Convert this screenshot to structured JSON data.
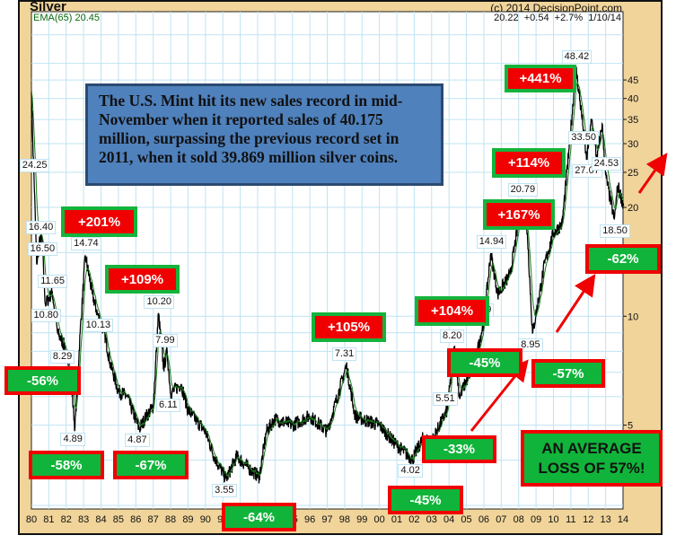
{
  "header": {
    "title": "Silver",
    "credit": "(c) 2014 DecisionPoint.com",
    "ema_label": "EMA(65) 20.45",
    "last_quote": "20.22  +0.54  +2.7%  1/10/14"
  },
  "note": "The U.S. Mint hit its new sales record in mid-November when it reported sales of 40.175 million, surpassing the previous record set in 2011, when it sold 39.869 million silver coins.",
  "summary_box": {
    "line1": "AN AVERAGE",
    "line2": "LOSS OF 57%!"
  },
  "colors": {
    "gain_box": "#f00000",
    "loss_box": "#10b43a",
    "price_line": "#000000",
    "ema_line": "#1a7a1a",
    "grid": "#bfe3f2",
    "frame": "#f0d49a",
    "note_box": "#4f81bd",
    "arrow": "#f00000"
  },
  "annotations": [
    {
      "text": "+441%",
      "kind": "gain"
    },
    {
      "text": "+114%",
      "kind": "gain"
    },
    {
      "text": "+167%",
      "kind": "gain"
    },
    {
      "text": "-62%",
      "kind": "loss"
    },
    {
      "text": "-57%",
      "kind": "loss"
    },
    {
      "text": "+104%",
      "kind": "gain"
    },
    {
      "text": "-45%",
      "kind": "loss"
    },
    {
      "text": "-33%",
      "kind": "loss"
    },
    {
      "text": "-45%",
      "kind": "loss"
    },
    {
      "text": "-64%",
      "kind": "loss"
    },
    {
      "text": "+105%",
      "kind": "gain"
    },
    {
      "text": "+201%",
      "kind": "gain"
    },
    {
      "text": "+109%",
      "kind": "gain"
    },
    {
      "text": "-56%",
      "kind": "loss"
    },
    {
      "text": "-58%",
      "kind": "loss"
    },
    {
      "text": "-67%",
      "kind": "loss"
    }
  ],
  "chart_data": {
    "type": "line",
    "title": "Silver",
    "y_scale": "log",
    "ylim": [
      2.9,
      70
    ],
    "xlim": [
      1980,
      2014.1
    ],
    "grid": true,
    "y_ticks": [
      5,
      10,
      20,
      25,
      30,
      35,
      40,
      45
    ],
    "x_ticks": [
      "80",
      "81",
      "82",
      "83",
      "84",
      "85",
      "86",
      "87",
      "88",
      "89",
      "90",
      "91",
      "92",
      "93",
      "94",
      "95",
      "96",
      "97",
      "98",
      "99",
      "00",
      "01",
      "02",
      "03",
      "04",
      "05",
      "06",
      "07",
      "08",
      "09",
      "10",
      "11",
      "12",
      "13",
      "14"
    ],
    "series": [
      {
        "name": "Silver",
        "points": [
          [
            1980.0,
            42
          ],
          [
            1980.08,
            30
          ],
          [
            1980.15,
            24.25
          ],
          [
            1980.3,
            14
          ],
          [
            1980.5,
            16.4
          ],
          [
            1980.6,
            16.5
          ],
          [
            1980.8,
            10.8
          ],
          [
            1981.2,
            11.65
          ],
          [
            1981.5,
            9
          ],
          [
            1981.9,
            8.29
          ],
          [
            1982.3,
            6.5
          ],
          [
            1982.5,
            4.89
          ],
          [
            1982.8,
            9
          ],
          [
            1983.1,
            14.74
          ],
          [
            1983.5,
            11.5
          ],
          [
            1983.8,
            10.13
          ],
          [
            1984.2,
            9
          ],
          [
            1984.5,
            7.5
          ],
          [
            1985,
            6.2
          ],
          [
            1985.5,
            6
          ],
          [
            1986.2,
            4.87
          ],
          [
            1986.6,
            5.3
          ],
          [
            1987.0,
            5.6
          ],
          [
            1987.3,
            10.2
          ],
          [
            1987.6,
            7.2
          ],
          [
            1987.8,
            7.99
          ],
          [
            1988,
            6.11
          ],
          [
            1988.6,
            6.5
          ],
          [
            1989,
            5.5
          ],
          [
            1990,
            4.8
          ],
          [
            1990.5,
            4.1
          ],
          [
            1991.2,
            3.55
          ],
          [
            1991.8,
            4.1
          ],
          [
            1992.5,
            3.8
          ],
          [
            1993.1,
            3.6
          ],
          [
            1993.5,
            4.8
          ],
          [
            1994,
            5.2
          ],
          [
            1995,
            5
          ],
          [
            1996,
            5.3
          ],
          [
            1997,
            4.8
          ],
          [
            1998.1,
            7.31
          ],
          [
            1998.6,
            5.3
          ],
          [
            1999,
            5.2
          ],
          [
            2000,
            5
          ],
          [
            2001,
            4.4
          ],
          [
            2001.9,
            4.02
          ],
          [
            2002.5,
            4.6
          ],
          [
            2003,
            4.5
          ],
          [
            2003.9,
            5.51
          ],
          [
            2004.3,
            8.2
          ],
          [
            2004.6,
            6
          ],
          [
            2005.5,
            7.5
          ],
          [
            2006.0,
            9.69
          ],
          [
            2006.4,
            14.94
          ],
          [
            2006.8,
            11.5
          ],
          [
            2007.5,
            13
          ],
          [
            2008.2,
            20.79
          ],
          [
            2008.5,
            17
          ],
          [
            2008.8,
            8.95
          ],
          [
            2009.5,
            14
          ],
          [
            2010.0,
            17
          ],
          [
            2010.5,
            18
          ],
          [
            2010.9,
            29
          ],
          [
            2011.3,
            48.42
          ],
          [
            2011.7,
            33.5
          ],
          [
            2011.9,
            27.07
          ],
          [
            2012.2,
            35
          ],
          [
            2012.5,
            27
          ],
          [
            2012.8,
            34
          ],
          [
            2013.0,
            24.53
          ],
          [
            2013.5,
            18.5
          ],
          [
            2013.7,
            23
          ],
          [
            2014.03,
            20.22
          ]
        ]
      },
      {
        "name": "EMA(65)",
        "derived_from": "Silver",
        "last_value": 20.45
      }
    ],
    "point_labels": [
      {
        "year": 2011.3,
        "price": 48.42,
        "text": "48.42",
        "kind": "peak"
      },
      {
        "year": 1980.15,
        "price": 24.25,
        "text": "24.25",
        "kind": "peak"
      },
      {
        "year": 1980.5,
        "price": 16.4,
        "text": "16.40",
        "kind": "peak"
      },
      {
        "year": 1980.6,
        "price": 16.5,
        "text": "16.50",
        "kind": "trough"
      },
      {
        "year": 1981.2,
        "price": 11.65,
        "text": "11.65",
        "kind": "peak"
      },
      {
        "year": 1980.8,
        "price": 10.8,
        "text": "10.80",
        "kind": "trough"
      },
      {
        "year": 1981.9,
        "price": 8.29,
        "text": "8.29",
        "kind": "trough"
      },
      {
        "year": 1982.5,
        "price": 4.89,
        "text": "4.89",
        "kind": "trough"
      },
      {
        "year": 1983.1,
        "price": 14.74,
        "text": "14.74",
        "kind": "peak"
      },
      {
        "year": 1983.8,
        "price": 10.13,
        "text": "10.13",
        "kind": "trough"
      },
      {
        "year": 1987.3,
        "price": 10.2,
        "text": "10.20",
        "kind": "peak"
      },
      {
        "year": 1987.8,
        "price": 7.99,
        "text": "7.99",
        "kind": "peak"
      },
      {
        "year": 1988.0,
        "price": 6.11,
        "text": "6.11",
        "kind": "trough"
      },
      {
        "year": 1986.2,
        "price": 4.87,
        "text": "4.87",
        "kind": "trough"
      },
      {
        "year": 1991.2,
        "price": 3.55,
        "text": "3.55",
        "kind": "trough"
      },
      {
        "year": 1998.1,
        "price": 7.31,
        "text": "7.31",
        "kind": "peak"
      },
      {
        "year": 2001.9,
        "price": 4.02,
        "text": "4.02",
        "kind": "trough"
      },
      {
        "year": 2003.9,
        "price": 5.51,
        "text": "5.51",
        "kind": "peak"
      },
      {
        "year": 2004.3,
        "price": 8.2,
        "text": "8.20",
        "kind": "peak"
      },
      {
        "year": 2006.0,
        "price": 9.69,
        "text": "9.69",
        "kind": "peak"
      },
      {
        "year": 2006.4,
        "price": 14.94,
        "text": "14.94",
        "kind": "peak"
      },
      {
        "year": 2008.2,
        "price": 20.79,
        "text": "20.79",
        "kind": "peak"
      },
      {
        "year": 2008.8,
        "price": 8.95,
        "text": "8.95",
        "kind": "trough"
      },
      {
        "year": 2011.7,
        "price": 33.5,
        "text": "33.50",
        "kind": "trough"
      },
      {
        "year": 2011.9,
        "price": 27.07,
        "text": "27.07",
        "kind": "trough"
      },
      {
        "year": 2013.0,
        "price": 24.53,
        "text": "24.53",
        "kind": "peak"
      },
      {
        "year": 2013.5,
        "price": 18.5,
        "text": "18.50",
        "kind": "trough"
      }
    ]
  }
}
